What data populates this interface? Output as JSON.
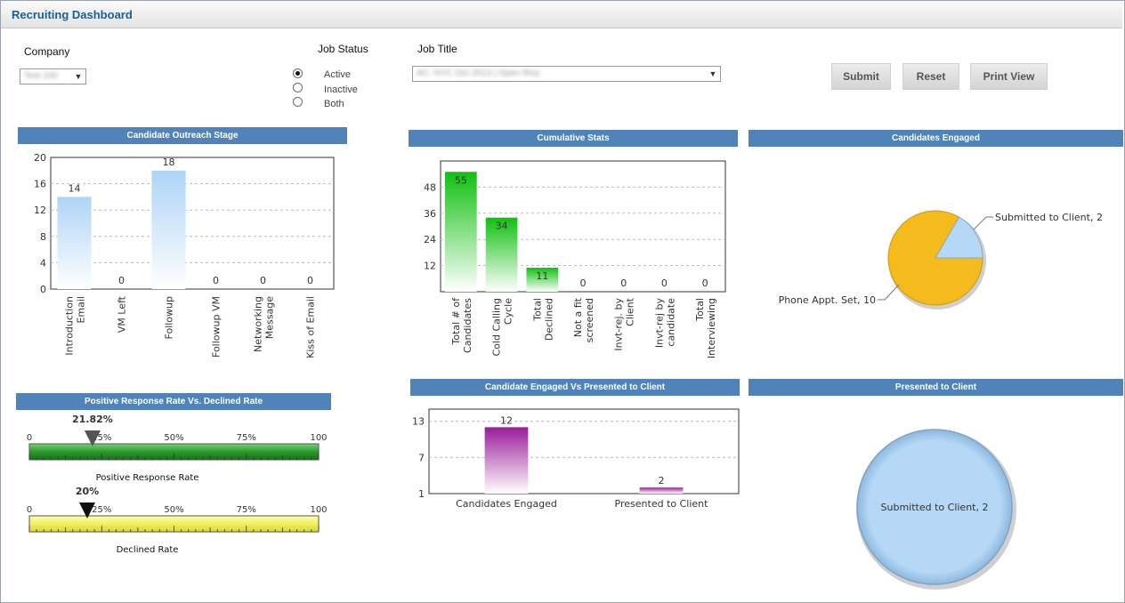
{
  "app": {
    "title": "Recruiting Dashboard"
  },
  "filters": {
    "company_label": "Company",
    "company_value": "Test 100",
    "job_status_label": "Job Status",
    "job_status_options": [
      "Active",
      "Inactive",
      "Both"
    ],
    "job_status_selected": "Active",
    "job_title_label": "Job Title",
    "job_title_value": "AC: NYC Oct 2013 | Open Req"
  },
  "buttons": {
    "submit": "Submit",
    "reset": "Reset",
    "print_view": "Print View"
  },
  "panels": {
    "outreach": "Candidate Outreach Stage",
    "cumulative": "Cumulative Stats",
    "engaged": "Candidates Engaged",
    "response": "Positive Response Rate Vs. Declined Rate",
    "engaged_vs_presented": "Candidate Engaged Vs Presented to Client",
    "presented": "Presented to Client"
  },
  "colors": {
    "header_blue": "#4f83ba",
    "title_blue": "#1b5e95",
    "bar_light_blue": "#b3d8f7",
    "bar_green": "#13c313",
    "bar_purple": "#9c1e9c",
    "pie_orange": "#f5bb1c",
    "pie_blue": "#b4d8f6",
    "gauge_green": "#2a9a2a",
    "gauge_yellow": "#f0f060"
  },
  "chart_data": [
    {
      "id": "outreach",
      "type": "bar",
      "categories": [
        "Introduction Email",
        "VM Left",
        "Followup",
        "Followup VM",
        "Networking Message",
        "Kiss of Email"
      ],
      "category_label_lines": [
        [
          "Introduction",
          "Email"
        ],
        [
          "VM Left"
        ],
        [
          "Followup"
        ],
        [
          "Followup VM"
        ],
        [
          "Networking",
          "Message"
        ],
        [
          "Kiss of Email"
        ]
      ],
      "values": [
        14,
        0,
        18,
        0,
        0,
        0
      ],
      "ylim": [
        0,
        20
      ],
      "yticks": [
        0,
        4,
        8,
        12,
        16,
        20
      ]
    },
    {
      "id": "cumulative",
      "type": "bar",
      "categories": [
        "Total # of Candidates",
        "Cold Calling Cycle",
        "Total Declined",
        "Not a fit screened",
        "Invt-rej. by Client",
        "Invt-rej by candidate",
        "Total Interviewing"
      ],
      "category_label_lines": [
        [
          "Total # of",
          "Candidates"
        ],
        [
          "Cold Calling",
          "Cycle"
        ],
        [
          "Total",
          "Declined"
        ],
        [
          "Not a fit",
          "screened"
        ],
        [
          "Invt-rej. by",
          "Client"
        ],
        [
          "Invt-rej by",
          "candidate"
        ],
        [
          "Total",
          "Interviewing"
        ]
      ],
      "values": [
        55,
        34,
        11,
        0,
        0,
        0,
        0
      ],
      "ylim": [
        0,
        60
      ],
      "yticks": [
        12,
        24,
        36,
        48
      ]
    },
    {
      "id": "engaged",
      "type": "pie",
      "slices": [
        {
          "label": "Phone Appt. Set, 10",
          "value": 10
        },
        {
          "label": "Submitted to Client, 2",
          "value": 2
        }
      ]
    },
    {
      "id": "engaged_vs_presented",
      "type": "bar",
      "categories": [
        "Candidates Engaged",
        "Presented to Client"
      ],
      "values": [
        12,
        2
      ],
      "ylim": [
        1,
        15
      ],
      "yticks": [
        1,
        7,
        13
      ]
    },
    {
      "id": "presented",
      "type": "pie",
      "slices": [
        {
          "label": "Submitted to Client, 2",
          "value": 2
        }
      ]
    },
    {
      "id": "positive_response_gauge",
      "type": "gauge",
      "value": 21.82,
      "value_label": "21.82%",
      "scale_labels": [
        "0",
        "25%",
        "50%",
        "75%",
        "100"
      ],
      "caption": "Positive Response Rate"
    },
    {
      "id": "declined_gauge",
      "type": "gauge",
      "value": 20,
      "value_label": "20%",
      "scale_labels": [
        "0",
        "25%",
        "50%",
        "75%",
        "100"
      ],
      "caption": "Declined Rate"
    }
  ]
}
